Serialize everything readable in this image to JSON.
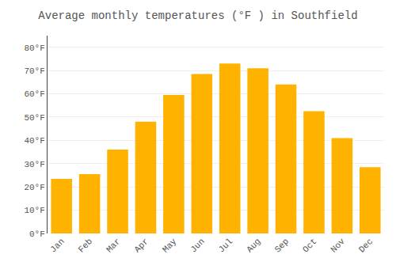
{
  "chart_data": {
    "type": "bar",
    "title": "Average monthly temperatures (°F ) in Southfield",
    "categories": [
      "Jan",
      "Feb",
      "Mar",
      "Apr",
      "May",
      "Jun",
      "Jul",
      "Aug",
      "Sep",
      "Oct",
      "Nov",
      "Dec"
    ],
    "values": [
      23.5,
      25.5,
      36.0,
      48.0,
      59.5,
      68.5,
      73.0,
      71.0,
      64.0,
      52.5,
      41.0,
      28.5
    ],
    "color": "#FFB300",
    "ylim": [
      0,
      85
    ],
    "yticks": [
      {
        "value": 0,
        "label": "0°F"
      },
      {
        "value": 10,
        "label": "10°F"
      },
      {
        "value": 20,
        "label": "20°F"
      },
      {
        "value": 30,
        "label": "30°F"
      },
      {
        "value": 40,
        "label": "40°F"
      },
      {
        "value": 50,
        "label": "50°F"
      },
      {
        "value": 60,
        "label": "60°F"
      },
      {
        "value": 70,
        "label": "70°F"
      },
      {
        "value": 80,
        "label": "80°F"
      }
    ],
    "grid": true
  }
}
